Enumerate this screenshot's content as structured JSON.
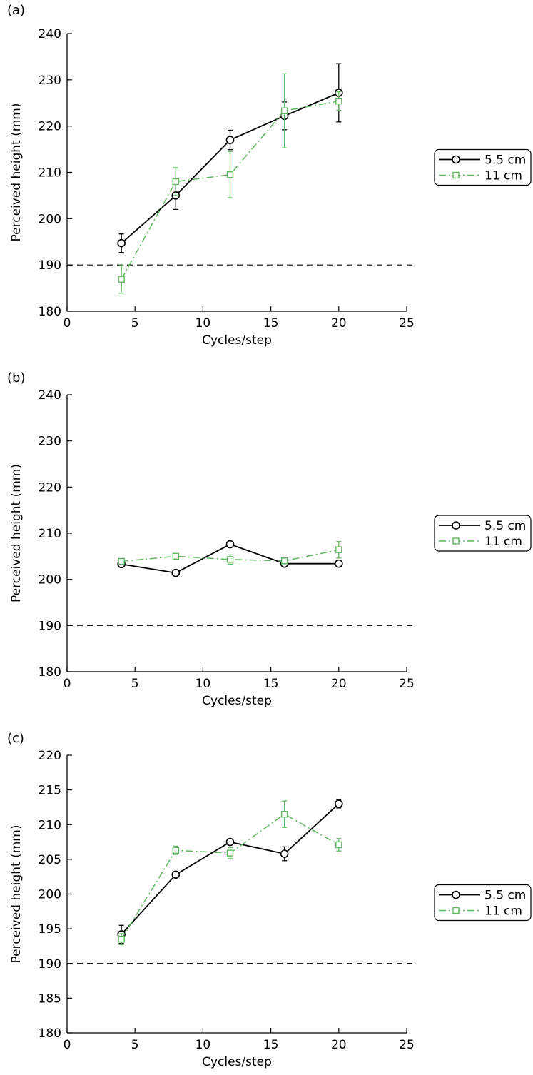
{
  "figure": {
    "panel_labels": [
      "(a)",
      "(b)",
      "(c)"
    ]
  },
  "colors": {
    "series_1": "#000000",
    "series_2": "#5cb85c",
    "reference_line": "#000000"
  },
  "chart_data": [
    {
      "panel": "(a)",
      "type": "line",
      "xlabel": "Cycles/step",
      "ylabel": "Perceived height (mm)",
      "xlim": [
        0,
        25
      ],
      "ylim": [
        180,
        240
      ],
      "xticks": [
        0,
        5,
        10,
        15,
        20,
        25
      ],
      "yticks": [
        180,
        190,
        200,
        210,
        220,
        230,
        240
      ],
      "reference_y": 190,
      "legend_position": "right",
      "x": [
        4,
        8,
        12,
        16,
        20
      ],
      "series": [
        {
          "name": "5.5 cm",
          "marker": "circle",
          "line": "solid",
          "values": [
            194.7,
            205.0,
            217.0,
            222.2,
            227.2
          ],
          "errors": [
            2.0,
            3.0,
            2.1,
            3.0,
            6.3
          ]
        },
        {
          "name": "11 cm",
          "marker": "square",
          "line": "dashdot",
          "values": [
            186.9,
            208.0,
            209.5,
            223.3,
            225.4
          ],
          "errors": [
            3.0,
            3.0,
            5.0,
            8.0,
            2.0
          ]
        }
      ]
    },
    {
      "panel": "(b)",
      "type": "line",
      "xlabel": "Cycles/step",
      "ylabel": "Perceived height (mm)",
      "xlim": [
        0,
        25
      ],
      "ylim": [
        180,
        240
      ],
      "xticks": [
        0,
        5,
        10,
        15,
        20,
        25
      ],
      "yticks": [
        180,
        190,
        200,
        210,
        220,
        230,
        240
      ],
      "reference_y": 190,
      "legend_position": "right",
      "x": [
        4,
        8,
        12,
        16,
        20
      ],
      "series": [
        {
          "name": "5.5 cm",
          "marker": "circle",
          "line": "solid",
          "values": [
            203.3,
            201.4,
            207.6,
            203.4,
            203.4
          ],
          "errors": [
            0.6,
            0.5,
            0.5,
            0.4,
            0.4
          ]
        },
        {
          "name": "11 cm",
          "marker": "square",
          "line": "dashdot",
          "values": [
            203.9,
            205.0,
            204.3,
            204.0,
            206.4
          ],
          "errors": [
            0.5,
            0.5,
            1.0,
            0.6,
            1.8
          ]
        }
      ]
    },
    {
      "panel": "(c)",
      "type": "line",
      "xlabel": "Cycles/step",
      "ylabel": "Perceived height (mm)",
      "xlim": [
        0,
        25
      ],
      "ylim": [
        180,
        220
      ],
      "xticks": [
        0,
        5,
        10,
        15,
        20,
        25
      ],
      "yticks": [
        180,
        185,
        190,
        195,
        200,
        205,
        210,
        215,
        220
      ],
      "reference_y": 190,
      "legend_position": "right",
      "x": [
        4,
        8,
        12,
        16,
        20
      ],
      "series": [
        {
          "name": "5.5 cm",
          "marker": "circle",
          "line": "solid",
          "values": [
            194.2,
            202.8,
            207.5,
            205.8,
            213.0
          ],
          "errors": [
            1.3,
            0.4,
            0.4,
            1.0,
            0.6
          ]
        },
        {
          "name": "11 cm",
          "marker": "square",
          "line": "dashdot",
          "values": [
            193.5,
            206.3,
            205.9,
            211.5,
            207.1
          ],
          "errors": [
            0.8,
            0.6,
            0.8,
            1.9,
            0.9
          ]
        }
      ]
    }
  ]
}
